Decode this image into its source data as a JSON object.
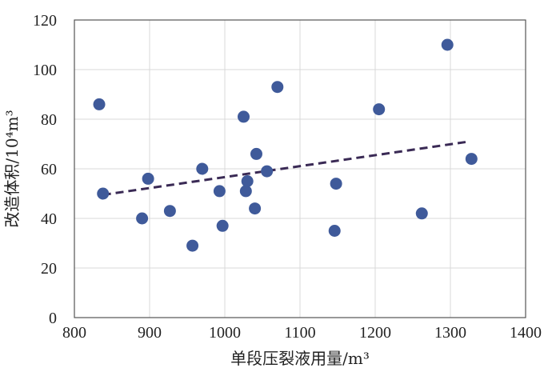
{
  "chart_data": {
    "type": "scatter",
    "title": "",
    "xlabel": "单段压裂液用量/m³",
    "ylabel": "改造体积/10⁴m³",
    "xlim": [
      800,
      1400
    ],
    "ylim": [
      0,
      120
    ],
    "xticks": [
      800,
      900,
      1000,
      1100,
      1200,
      1300,
      1400
    ],
    "yticks": [
      0,
      20,
      40,
      60,
      80,
      100,
      120
    ],
    "grid": true,
    "point_color": "#3f5a9a",
    "trend_color": "#3a2a55",
    "series": [
      {
        "points": [
          {
            "x": 833,
            "y": 86
          },
          {
            "x": 838,
            "y": 50
          },
          {
            "x": 890,
            "y": 40
          },
          {
            "x": 898,
            "y": 56
          },
          {
            "x": 927,
            "y": 43
          },
          {
            "x": 957,
            "y": 29
          },
          {
            "x": 970,
            "y": 60
          },
          {
            "x": 993,
            "y": 51
          },
          {
            "x": 997,
            "y": 37
          },
          {
            "x": 1025,
            "y": 81
          },
          {
            "x": 1028,
            "y": 51
          },
          {
            "x": 1030,
            "y": 55
          },
          {
            "x": 1040,
            "y": 44
          },
          {
            "x": 1042,
            "y": 66
          },
          {
            "x": 1056,
            "y": 59
          },
          {
            "x": 1070,
            "y": 93
          },
          {
            "x": 1146,
            "y": 35
          },
          {
            "x": 1148,
            "y": 54
          },
          {
            "x": 1205,
            "y": 84
          },
          {
            "x": 1262,
            "y": 42
          },
          {
            "x": 1296,
            "y": 110
          },
          {
            "x": 1328,
            "y": 64
          }
        ]
      }
    ],
    "trendline": {
      "style": "dashed",
      "x": [
        838,
        1325
      ],
      "y": [
        49.5,
        71
      ]
    }
  }
}
